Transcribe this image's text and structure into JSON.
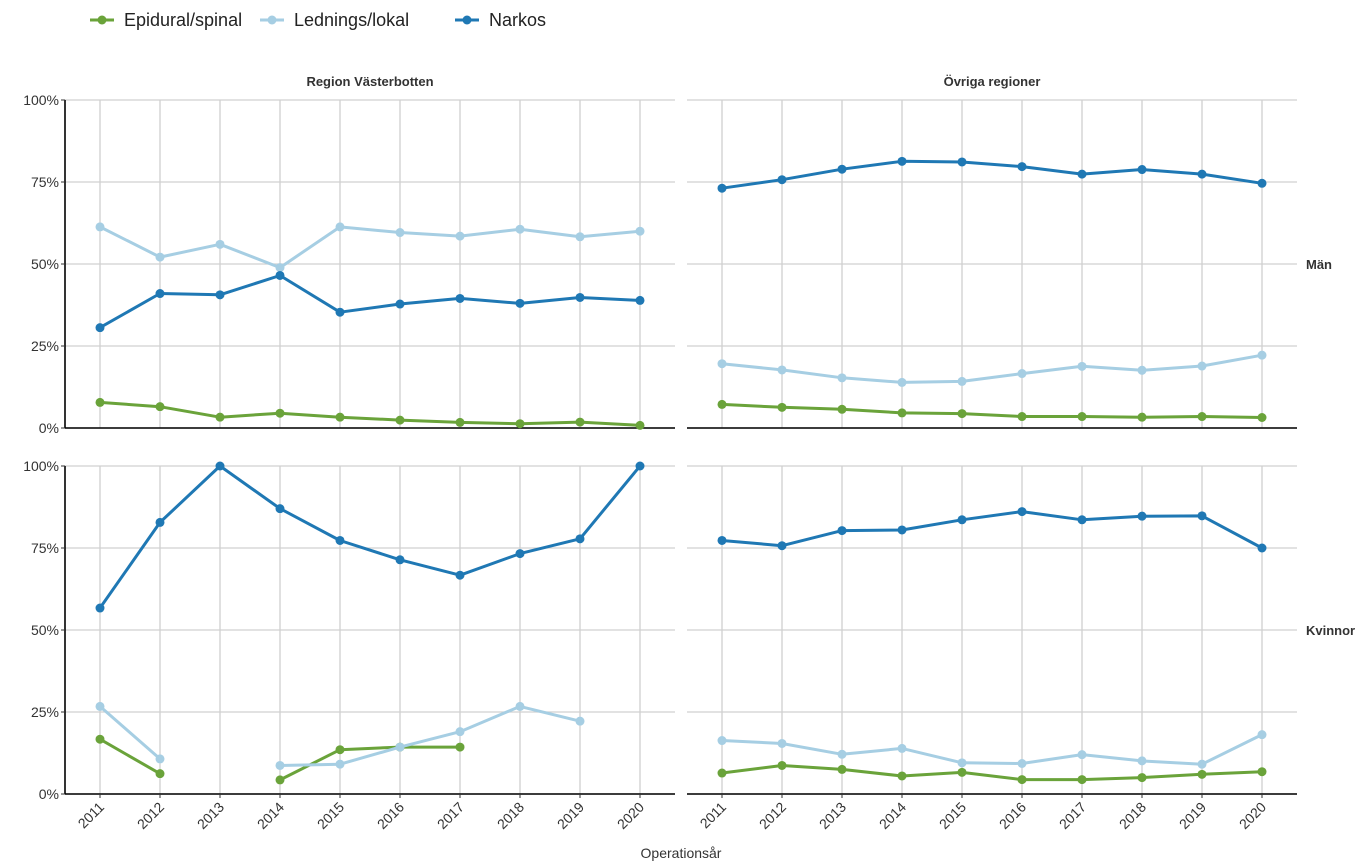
{
  "chart_data": {
    "type": "line",
    "xlabel": "Operationsår",
    "ylim": [
      0,
      100
    ],
    "yticks": [
      "0%",
      "25%",
      "50%",
      "75%",
      "100%"
    ],
    "x": [
      2011,
      2012,
      2013,
      2014,
      2015,
      2016,
      2017,
      2018,
      2019,
      2020
    ],
    "legend": {
      "placement": "top-left",
      "entries": [
        {
          "name": "Epidural/spinal",
          "color": "#6aa33a"
        },
        {
          "name": "Lednings/lokal",
          "color": "#a6cee3"
        },
        {
          "name": "Narkos",
          "color": "#1f78b4"
        }
      ]
    },
    "columns": [
      "Region Västerbotten",
      "Övriga regioner"
    ],
    "rows": [
      "Män",
      "Kvinnor"
    ],
    "grid": true,
    "panels": [
      {
        "row": "Män",
        "column": "Region Västerbotten",
        "series": [
          {
            "name": "Epidural/spinal",
            "values": [
              7.8,
              6.5,
              3.3,
              4.5,
              3.3,
              2.4,
              1.7,
              1.3,
              1.8,
              0.8
            ]
          },
          {
            "name": "Lednings/lokal",
            "values": [
              61.3,
              52.1,
              56.0,
              48.9,
              61.3,
              59.6,
              58.5,
              60.6,
              58.3,
              60.0
            ]
          },
          {
            "name": "Narkos",
            "values": [
              30.6,
              41.0,
              40.6,
              46.5,
              35.3,
              37.8,
              39.5,
              38.0,
              39.8,
              38.9
            ]
          }
        ]
      },
      {
        "row": "Män",
        "column": "Övriga regioner",
        "series": [
          {
            "name": "Epidural/spinal",
            "values": [
              7.2,
              6.3,
              5.7,
              4.6,
              4.4,
              3.5,
              3.5,
              3.3,
              3.5,
              3.2
            ]
          },
          {
            "name": "Lednings/lokal",
            "values": [
              19.6,
              17.7,
              15.3,
              13.9,
              14.2,
              16.6,
              18.8,
              17.6,
              18.9,
              22.2
            ]
          },
          {
            "name": "Narkos",
            "values": [
              73.1,
              75.7,
              78.9,
              81.3,
              81.1,
              79.7,
              77.4,
              78.8,
              77.4,
              74.6
            ]
          }
        ]
      },
      {
        "row": "Kvinnor",
        "column": "Region Västerbotten",
        "series": [
          {
            "name": "Epidural/spinal",
            "values": [
              16.7,
              6.2,
              null,
              4.3,
              13.5,
              14.3,
              14.3,
              null,
              null,
              null
            ]
          },
          {
            "name": "Lednings/lokal",
            "values": [
              26.7,
              10.7,
              null,
              8.7,
              9.1,
              14.3,
              19.0,
              26.7,
              22.2,
              null
            ]
          },
          {
            "name": "Narkos",
            "values": [
              56.7,
              82.8,
              100.0,
              87.0,
              77.3,
              71.4,
              66.7,
              73.3,
              77.8,
              100.0
            ]
          }
        ]
      },
      {
        "row": "Kvinnor",
        "column": "Övriga regioner",
        "series": [
          {
            "name": "Epidural/spinal",
            "values": [
              6.4,
              8.7,
              7.5,
              5.5,
              6.6,
              4.4,
              4.4,
              5.0,
              6.0,
              6.8
            ]
          },
          {
            "name": "Lednings/lokal",
            "values": [
              16.3,
              15.4,
              12.1,
              13.9,
              9.5,
              9.3,
              12.0,
              10.1,
              9.1,
              18.1
            ]
          },
          {
            "name": "Narkos",
            "values": [
              77.3,
              75.7,
              80.3,
              80.5,
              83.6,
              86.1,
              83.6,
              84.7,
              84.8,
              75.0
            ]
          }
        ]
      }
    ]
  }
}
